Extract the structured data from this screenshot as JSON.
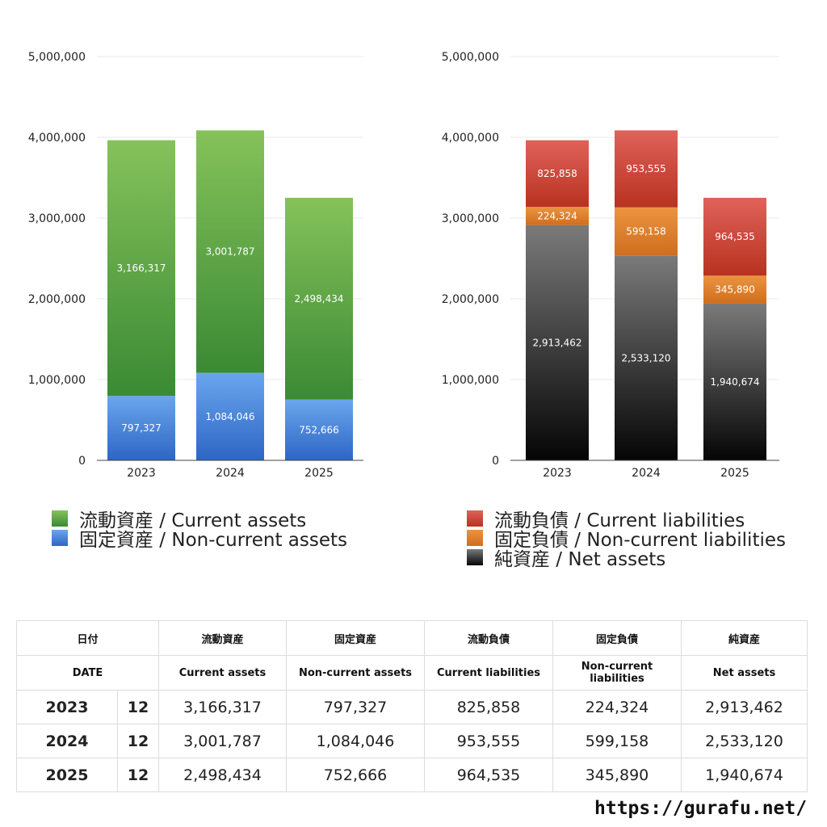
{
  "chart_data": [
    {
      "type": "bar",
      "stacked": true,
      "categories": [
        "2023",
        "2024",
        "2025"
      ],
      "ylim": [
        0,
        5000000
      ],
      "yticks": [
        "0",
        "1,000,000",
        "2,000,000",
        "3,000,000",
        "4,000,000",
        "5,000,000"
      ],
      "series": [
        {
          "name": "固定資産 / Non-current assets",
          "values": [
            797327,
            1084046,
            752666
          ],
          "labels": [
            "797,327",
            "1,084,046",
            "752,666"
          ],
          "color_top": "#6aa6ee",
          "color_bottom": "#2d66c4"
        },
        {
          "name": "流動資産 / Current assets",
          "values": [
            3166317,
            3001787,
            2498434
          ],
          "labels": [
            "3,166,317",
            "3,001,787",
            "2,498,434"
          ],
          "color_top": "#86c25a",
          "color_bottom": "#3a8a34"
        }
      ],
      "legend_order": [
        1,
        0
      ]
    },
    {
      "type": "bar",
      "stacked": true,
      "categories": [
        "2023",
        "2024",
        "2025"
      ],
      "ylim": [
        0,
        5000000
      ],
      "yticks": [
        "0",
        "1,000,000",
        "2,000,000",
        "3,000,000",
        "4,000,000",
        "5,000,000"
      ],
      "series": [
        {
          "name": "純資産 / Net assets",
          "values": [
            2913462,
            2533120,
            1940674
          ],
          "labels": [
            "2,913,462",
            "2,533,120",
            "1,940,674"
          ],
          "color_top": "#7a7a7a",
          "color_bottom": "#050505"
        },
        {
          "name": "固定負債 / Non-current liabilities",
          "values": [
            224324,
            599158,
            345890
          ],
          "labels": [
            "224,324",
            "599,158",
            "345,890"
          ],
          "color_top": "#eb9440",
          "color_bottom": "#cf6e1e"
        },
        {
          "name": "流動負債 / Current liabilities",
          "values": [
            825858,
            953555,
            964535
          ],
          "labels": [
            "825,858",
            "953,555",
            "964,535"
          ],
          "color_top": "#e0625a",
          "color_bottom": "#b83220"
        }
      ],
      "legend_order": [
        2,
        1,
        0
      ]
    }
  ],
  "table": {
    "headers_jp": [
      "日付",
      "流動資産",
      "固定資産",
      "流動負債",
      "固定負債",
      "純資産"
    ],
    "headers_en": [
      "DATE",
      "Current assets",
      "Non-current assets",
      "Current liabilities",
      "Non-current liabilities",
      "Net assets"
    ],
    "rows": [
      {
        "year": "2023",
        "month": "12",
        "values": [
          "3,166,317",
          "797,327",
          "825,858",
          "224,324",
          "2,913,462"
        ]
      },
      {
        "year": "2024",
        "month": "12",
        "values": [
          "3,001,787",
          "1,084,046",
          "953,555",
          "599,158",
          "2,533,120"
        ]
      },
      {
        "year": "2025",
        "month": "12",
        "values": [
          "2,498,434",
          "752,666",
          "964,535",
          "345,890",
          "1,940,674"
        ]
      }
    ]
  },
  "footer": {
    "site": "https://gurafu.net/"
  }
}
